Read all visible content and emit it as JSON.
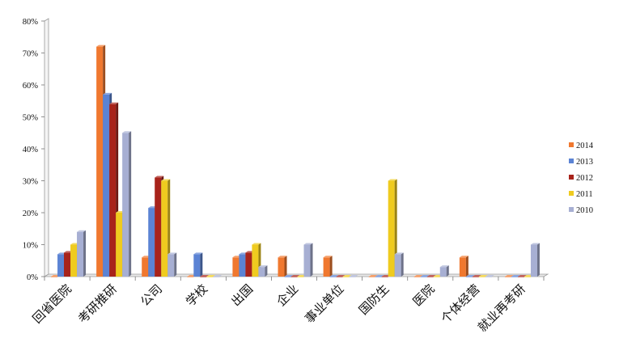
{
  "chart_data": {
    "type": "bar",
    "title": "",
    "xlabel": "",
    "ylabel": "",
    "ylim": [
      0,
      80
    ],
    "yticks": [
      "0%",
      "10%",
      "20%",
      "30%",
      "40%",
      "50%",
      "60%",
      "70%",
      "80%"
    ],
    "categories": [
      "回省医院",
      "考研推研",
      "公司",
      "学校",
      "出国",
      "企业",
      "事业单位",
      "国防生",
      "医院",
      "个体经营",
      "就业再考研"
    ],
    "series": [
      {
        "name": "2014",
        "color": "#F0782F",
        "values": [
          0,
          72,
          6,
          0,
          6,
          6,
          6,
          0,
          0,
          6,
          0
        ]
      },
      {
        "name": "2013",
        "color": "#5B83D4",
        "values": [
          7,
          57,
          21.5,
          7,
          7,
          0,
          0,
          0,
          0,
          0,
          0
        ]
      },
      {
        "name": "2012",
        "color": "#A8231B",
        "values": [
          7.5,
          54,
          31,
          0,
          7.5,
          0,
          0,
          0,
          0,
          0,
          0
        ]
      },
      {
        "name": "2011",
        "color": "#EFCB1F",
        "values": [
          10,
          20,
          30,
          0,
          10,
          0,
          0,
          30,
          0,
          0,
          0
        ]
      },
      {
        "name": "2010",
        "color": "#A7AFD3",
        "values": [
          14,
          45,
          7,
          0,
          3,
          10,
          0,
          7,
          3,
          0,
          10
        ]
      }
    ],
    "legend_position": "right",
    "grid": false,
    "style": "3d-clustered-column"
  }
}
